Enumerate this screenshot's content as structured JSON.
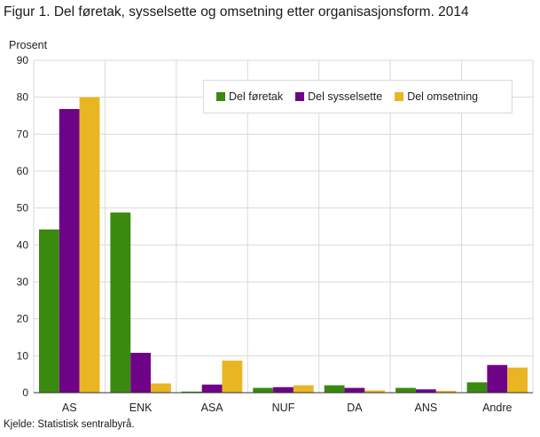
{
  "title": "Figur 1. Del føretak, sysselsette og omsetning etter organisasjonsform. 2014",
  "source": "Kjelde: Statistisk sentralbyrå.",
  "chart_data": {
    "type": "bar",
    "ylabel": "Prosent",
    "ylim": [
      0,
      90
    ],
    "yticks": [
      0,
      10,
      20,
      30,
      40,
      50,
      60,
      70,
      80,
      90
    ],
    "grid": true,
    "legend_position": "top-right",
    "categories": [
      "AS",
      "ENK",
      "ASA",
      "NUF",
      "DA",
      "ANS",
      "Andre"
    ],
    "series": [
      {
        "name": "Del føretak",
        "color": "#3a8a0f",
        "values": [
          44.2,
          48.8,
          0.3,
          1.3,
          2.0,
          1.3,
          2.8
        ]
      },
      {
        "name": "Del sysselsette",
        "color": "#6e0388",
        "values": [
          76.8,
          10.8,
          2.2,
          1.5,
          1.3,
          0.9,
          7.5
        ]
      },
      {
        "name": "Del omsetning",
        "color": "#eab522",
        "values": [
          80.0,
          2.5,
          8.7,
          2.0,
          0.6,
          0.5,
          6.8
        ]
      }
    ]
  }
}
